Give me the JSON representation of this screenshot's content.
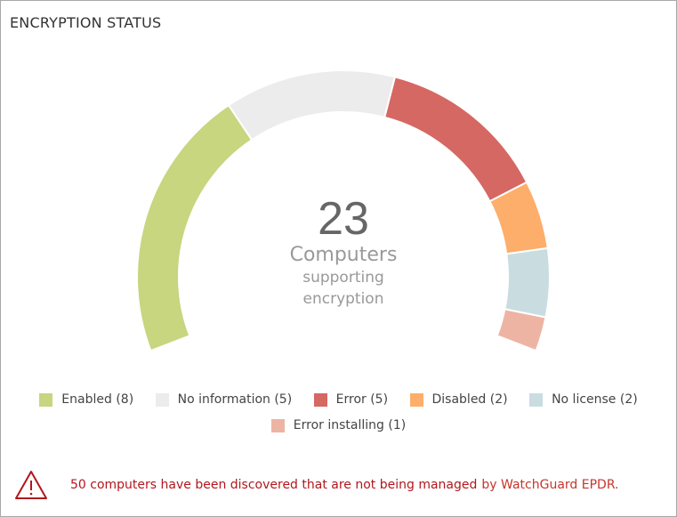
{
  "title": "ENCRYPTION STATUS",
  "center": {
    "count": "23",
    "label": "Computers",
    "sublabel1": "supporting",
    "sublabel2": "encryption"
  },
  "chart_data": {
    "type": "gauge-donut",
    "total": 23,
    "categories": [
      "Enabled",
      "No information",
      "Error",
      "Disabled",
      "No license",
      "Error installing"
    ],
    "values": [
      8,
      5,
      5,
      2,
      2,
      1
    ],
    "colors": [
      "#c7d67f",
      "#ececec",
      "#d56863",
      "#fdae6b",
      "#c9dde1",
      "#eeb4a3"
    ],
    "legend_placement": "bottom"
  },
  "legend": [
    {
      "label": "Enabled (8)",
      "color": "#c7d67f"
    },
    {
      "label": "No information (5)",
      "color": "#ececec"
    },
    {
      "label": "Error (5)",
      "color": "#d56863"
    },
    {
      "label": "Disabled (2)",
      "color": "#fdae6b"
    },
    {
      "label": "No license (2)",
      "color": "#c9dde1"
    },
    {
      "label": "Error installing (1)",
      "color": "#eeb4a3"
    }
  ],
  "warning": {
    "icon": "warning-triangle-icon",
    "message": "50 computers have been discovered that are not being managed",
    "suffix": "by WatchGuard EPDR."
  }
}
